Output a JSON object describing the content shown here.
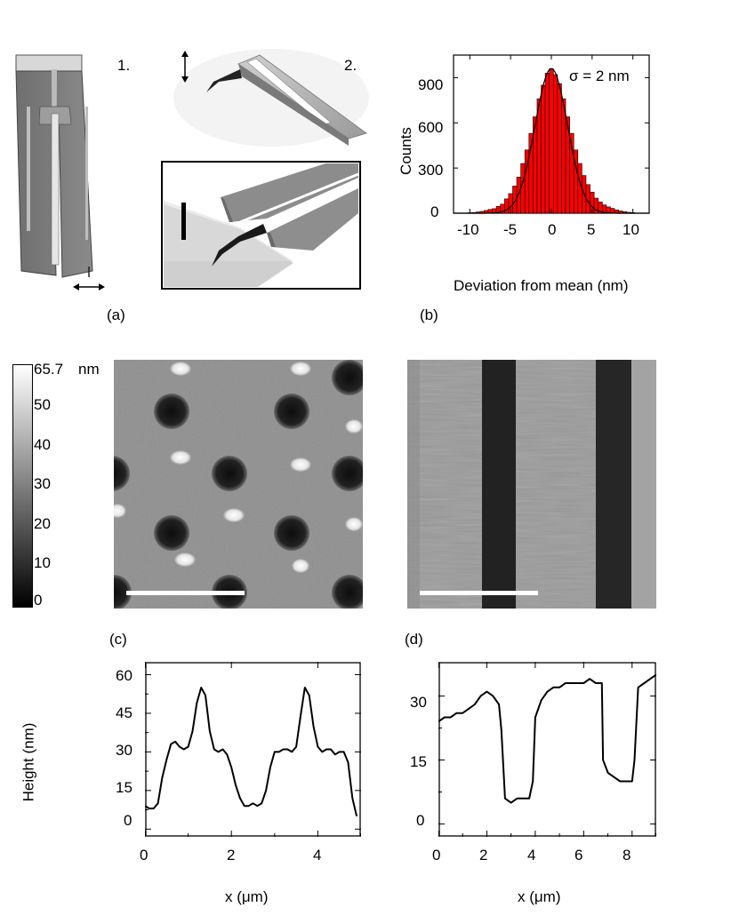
{
  "panels": {
    "a": {
      "label": "(a)",
      "step1_label": "1.",
      "step2_label": "2."
    },
    "b": {
      "label": "(b)",
      "sigma_label": "σ = 2 nm",
      "ylabel": "Counts",
      "xlabel": "Deviation from mean (nm)",
      "yticks": [
        "0",
        "300",
        "600",
        "900"
      ],
      "xticks": [
        "-10",
        "-5",
        "0",
        "5",
        "10"
      ]
    },
    "c": {
      "label": "(c)"
    },
    "d": {
      "label": "(d)"
    },
    "colorbar": {
      "max_label": "65.7",
      "unit": "nm",
      "ticks": [
        "50",
        "40",
        "30",
        "20",
        "10",
        "0"
      ]
    },
    "profile_left": {
      "ylabel": "Height (nm)",
      "xlabel": "x (μm)",
      "yticks": [
        "0",
        "15",
        "30",
        "45",
        "60"
      ],
      "xticks": [
        "0",
        "2",
        "4"
      ]
    },
    "profile_right": {
      "xlabel": "x (μm)",
      "yticks": [
        "0",
        "15",
        "30"
      ],
      "xticks": [
        "0",
        "2",
        "4",
        "6",
        "8"
      ]
    }
  },
  "chart_data": [
    {
      "type": "bar",
      "xlabel": "Deviation from mean (nm)",
      "ylabel": "Counts",
      "xlim": [
        -12,
        12
      ],
      "ylim": [
        0,
        1050
      ],
      "annotation": "σ = 2 nm",
      "bin_width": 0.5,
      "x": [
        -10,
        -9.5,
        -9,
        -8.5,
        -8,
        -7.5,
        -7,
        -6.5,
        -6,
        -5.5,
        -5,
        -4.5,
        -4,
        -3.5,
        -3,
        -2.5,
        -2,
        -1.5,
        -1,
        -0.5,
        0,
        0.5,
        1,
        1.5,
        2,
        2.5,
        3,
        3.5,
        4,
        4.5,
        5,
        5.5,
        6,
        6.5,
        7,
        7.5,
        8,
        8.5,
        9,
        9.5,
        10
      ],
      "values": [
        3,
        4,
        8,
        12,
        18,
        25,
        30,
        45,
        60,
        95,
        130,
        180,
        240,
        330,
        420,
        530,
        640,
        760,
        850,
        930,
        960,
        920,
        860,
        760,
        640,
        530,
        420,
        330,
        250,
        190,
        140,
        100,
        75,
        55,
        42,
        32,
        22,
        15,
        10,
        6,
        4
      ],
      "fit": "gaussian"
    },
    {
      "type": "line",
      "xlabel": "x (μm)",
      "ylabel": "Height (nm)",
      "xlim": [
        0,
        5
      ],
      "ylim": [
        -3,
        65
      ],
      "x": [
        0,
        0.1,
        0.2,
        0.3,
        0.4,
        0.5,
        0.6,
        0.7,
        0.8,
        0.9,
        1.0,
        1.1,
        1.2,
        1.3,
        1.4,
        1.5,
        1.6,
        1.7,
        1.8,
        1.9,
        2.0,
        2.1,
        2.2,
        2.3,
        2.4,
        2.5,
        2.6,
        2.7,
        2.8,
        2.9,
        3.0,
        3.1,
        3.2,
        3.3,
        3.4,
        3.5,
        3.6,
        3.7,
        3.8,
        3.9,
        4.0,
        4.1,
        4.2,
        4.3,
        4.4,
        4.5,
        4.6,
        4.7,
        4.8,
        4.9
      ],
      "y": [
        9,
        8,
        8,
        10,
        20,
        27,
        33,
        34,
        32,
        31,
        32,
        38,
        49,
        55,
        52,
        38,
        31,
        30,
        31,
        29,
        24,
        17,
        12,
        9,
        9,
        10,
        9,
        10,
        15,
        24,
        30,
        30,
        31,
        31,
        30,
        32,
        44,
        55,
        52,
        40,
        32,
        30,
        31,
        31,
        29,
        30,
        30,
        26,
        12,
        5
      ]
    },
    {
      "type": "line",
      "xlabel": "x (μm)",
      "ylabel": "Height (nm)",
      "xlim": [
        0,
        9
      ],
      "ylim": [
        -3,
        38
      ],
      "x": [
        0,
        0.25,
        0.5,
        0.75,
        1.0,
        1.25,
        1.5,
        1.75,
        2.0,
        2.25,
        2.5,
        2.6,
        2.75,
        3.0,
        3.25,
        3.5,
        3.75,
        3.9,
        4.0,
        4.25,
        4.5,
        4.75,
        5.0,
        5.25,
        5.5,
        5.75,
        6.0,
        6.25,
        6.5,
        6.75,
        6.8,
        7.0,
        7.25,
        7.5,
        7.75,
        8.0,
        8.1,
        8.25,
        8.5,
        8.75,
        9.0
      ],
      "y": [
        24,
        25,
        25,
        26,
        26,
        27,
        28,
        30,
        31,
        30,
        28,
        22,
        6,
        5,
        6,
        6,
        6,
        10,
        25,
        29,
        31,
        32,
        32,
        33,
        33,
        33,
        33,
        34,
        33,
        33,
        15,
        12,
        11,
        10,
        10,
        10,
        15,
        32,
        33,
        34,
        35
      ]
    }
  ]
}
